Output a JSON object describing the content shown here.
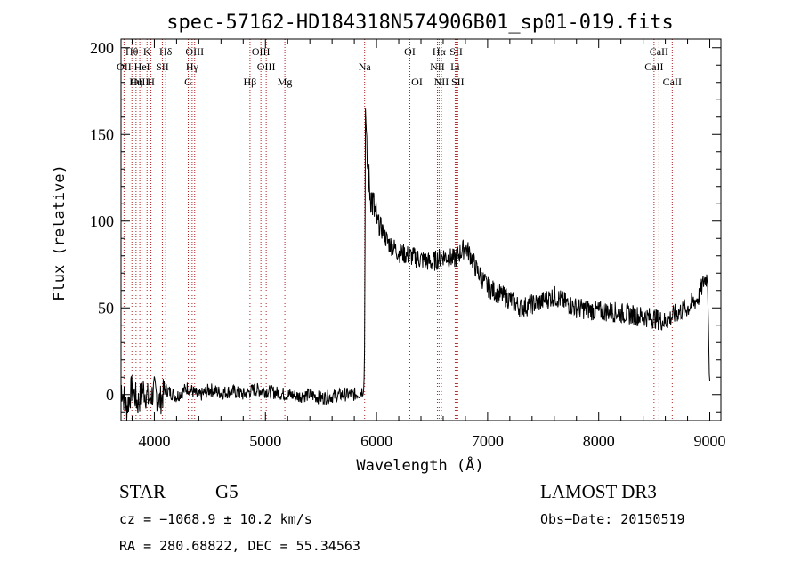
{
  "chart_data": {
    "type": "line",
    "title": "spec-57162-HD184318N574906B01_sp01-019.fits",
    "xlabel": "Wavelength (Å)",
    "ylabel": "Flux (relative)",
    "xlim": [
      3700,
      9100
    ],
    "ylim": [
      -15,
      205
    ],
    "xticks": [
      4000,
      5000,
      6000,
      7000,
      8000,
      9000
    ],
    "yticks": [
      0,
      50,
      100,
      150,
      200
    ],
    "series": [
      {
        "name": "spectrum",
        "x": [
          3700,
          3750,
          3800,
          3850,
          3900,
          3950,
          4000,
          4050,
          4100,
          4200,
          4300,
          4400,
          4500,
          4600,
          4700,
          4800,
          4900,
          5000,
          5100,
          5200,
          5300,
          5400,
          5500,
          5600,
          5700,
          5800,
          5850,
          5880,
          5890,
          5895,
          5900,
          5905,
          5910,
          5920,
          5940,
          5960,
          6000,
          6050,
          6100,
          6150,
          6200,
          6300,
          6400,
          6500,
          6600,
          6700,
          6800,
          6850,
          6900,
          7000,
          7100,
          7200,
          7300,
          7400,
          7500,
          7600,
          7700,
          7800,
          7900,
          8000,
          8100,
          8200,
          8300,
          8400,
          8500,
          8600,
          8700,
          8800,
          8900,
          8950,
          8980,
          9000
        ],
        "y": [
          5,
          -8,
          4,
          -5,
          3,
          -3,
          2,
          -4,
          3,
          -1,
          4,
          -1,
          3,
          1,
          2,
          0,
          3,
          2,
          1,
          0,
          -1,
          0,
          -2,
          -1,
          0,
          0,
          1,
          3,
          10,
          60,
          175,
          150,
          140,
          130,
          118,
          112,
          100,
          95,
          88,
          85,
          82,
          80,
          78,
          76,
          80,
          78,
          85,
          80,
          72,
          62,
          58,
          55,
          50,
          52,
          54,
          57,
          53,
          50,
          49,
          48,
          48,
          47,
          46,
          45,
          44,
          42,
          47,
          50,
          56,
          66,
          68,
          3
        ]
      }
    ],
    "line_labels": [
      {
        "text": "Hθ",
        "wavelength": 3798,
        "row": 1
      },
      {
        "text": "OII",
        "wavelength": 3727,
        "row": 2
      },
      {
        "text": "OIII",
        "wavelength": 3869,
        "row": 3
      },
      {
        "text": "Hη",
        "wavelength": 3835,
        "row": 3
      },
      {
        "text": "HeI",
        "wavelength": 3889,
        "row": 2
      },
      {
        "text": "K",
        "wavelength": 3934,
        "row": 1
      },
      {
        "text": "SII",
        "wavelength": 4072,
        "row": 2
      },
      {
        "text": "H",
        "wavelength": 3969,
        "row": 3
      },
      {
        "text": "Hδ",
        "wavelength": 4102,
        "row": 1
      },
      {
        "text": "OIII",
        "wavelength": 4363,
        "row": 1
      },
      {
        "text": "Hγ",
        "wavelength": 4340,
        "row": 2
      },
      {
        "text": "G",
        "wavelength": 4305,
        "row": 3
      },
      {
        "text": "OIII",
        "wavelength": 4959,
        "row": 1
      },
      {
        "text": "OIII",
        "wavelength": 5007,
        "row": 2
      },
      {
        "text": "Hβ",
        "wavelength": 4861,
        "row": 3
      },
      {
        "text": "Mg",
        "wavelength": 5175,
        "row": 3
      },
      {
        "text": "Na",
        "wavelength": 5893,
        "row": 2
      },
      {
        "text": "OI",
        "wavelength": 6300,
        "row": 1
      },
      {
        "text": "OI",
        "wavelength": 6364,
        "row": 3
      },
      {
        "text": "Hα",
        "wavelength": 6563,
        "row": 1
      },
      {
        "text": "SII",
        "wavelength": 6717,
        "row": 1
      },
      {
        "text": "NII",
        "wavelength": 6548,
        "row": 2
      },
      {
        "text": "Li",
        "wavelength": 6708,
        "row": 2
      },
      {
        "text": "NII",
        "wavelength": 6584,
        "row": 3
      },
      {
        "text": "SII",
        "wavelength": 6731,
        "row": 3
      },
      {
        "text": "CaII",
        "wavelength": 8542,
        "row": 1
      },
      {
        "text": "CaII",
        "wavelength": 8498,
        "row": 2
      },
      {
        "text": "CaII",
        "wavelength": 8662,
        "row": 3
      }
    ],
    "line_color": "#000000",
    "marker_color": "#b22222"
  },
  "info": {
    "class": "STAR",
    "subclass": "G5",
    "survey": "LAMOST DR3",
    "cz": "cz = −1068.9 ± 10.2 km/s",
    "obs_date": "Obs−Date: 20150519",
    "coords": "RA = 280.68822, DEC =  55.34563"
  }
}
